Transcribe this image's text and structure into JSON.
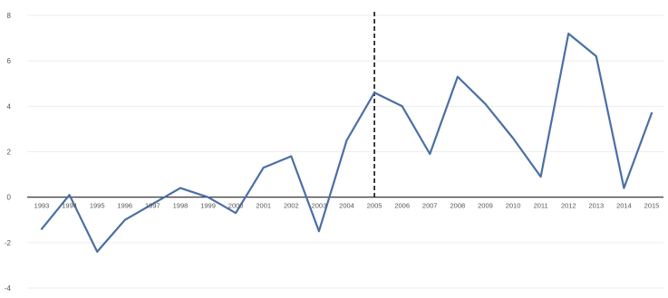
{
  "chart_data": {
    "type": "line",
    "title": "",
    "xlabel": "",
    "ylabel": "",
    "categories": [
      "1993",
      "1994",
      "1995",
      "1996",
      "1997",
      "1998",
      "1999",
      "2000",
      "2001",
      "2002",
      "2003",
      "2004",
      "2005",
      "2006",
      "2007",
      "2008",
      "2009",
      "2010",
      "2011",
      "2012",
      "2013",
      "2014",
      "2015"
    ],
    "series": [
      {
        "values": [
          -1.4,
          0.1,
          -2.4,
          -1.0,
          -0.3,
          0.4,
          0.0,
          -0.7,
          1.3,
          1.8,
          -1.5,
          2.5,
          4.6,
          4.0,
          1.9,
          5.3,
          4.1,
          2.6,
          0.9,
          7.2,
          6.2,
          0.4,
          3.7
        ],
        "color": "#4a6fa5"
      }
    ],
    "ylim": [
      -4,
      8
    ],
    "yticks": [
      -4,
      -2,
      0,
      2,
      4,
      6,
      8
    ],
    "grid": true,
    "legend": "none",
    "vertical_marker": {
      "x": "2005",
      "style": "dashed",
      "color": "#111111"
    },
    "gridline_color": "#ececec",
    "axis_line_color": "#222222",
    "tick_label_color": "#555555"
  }
}
